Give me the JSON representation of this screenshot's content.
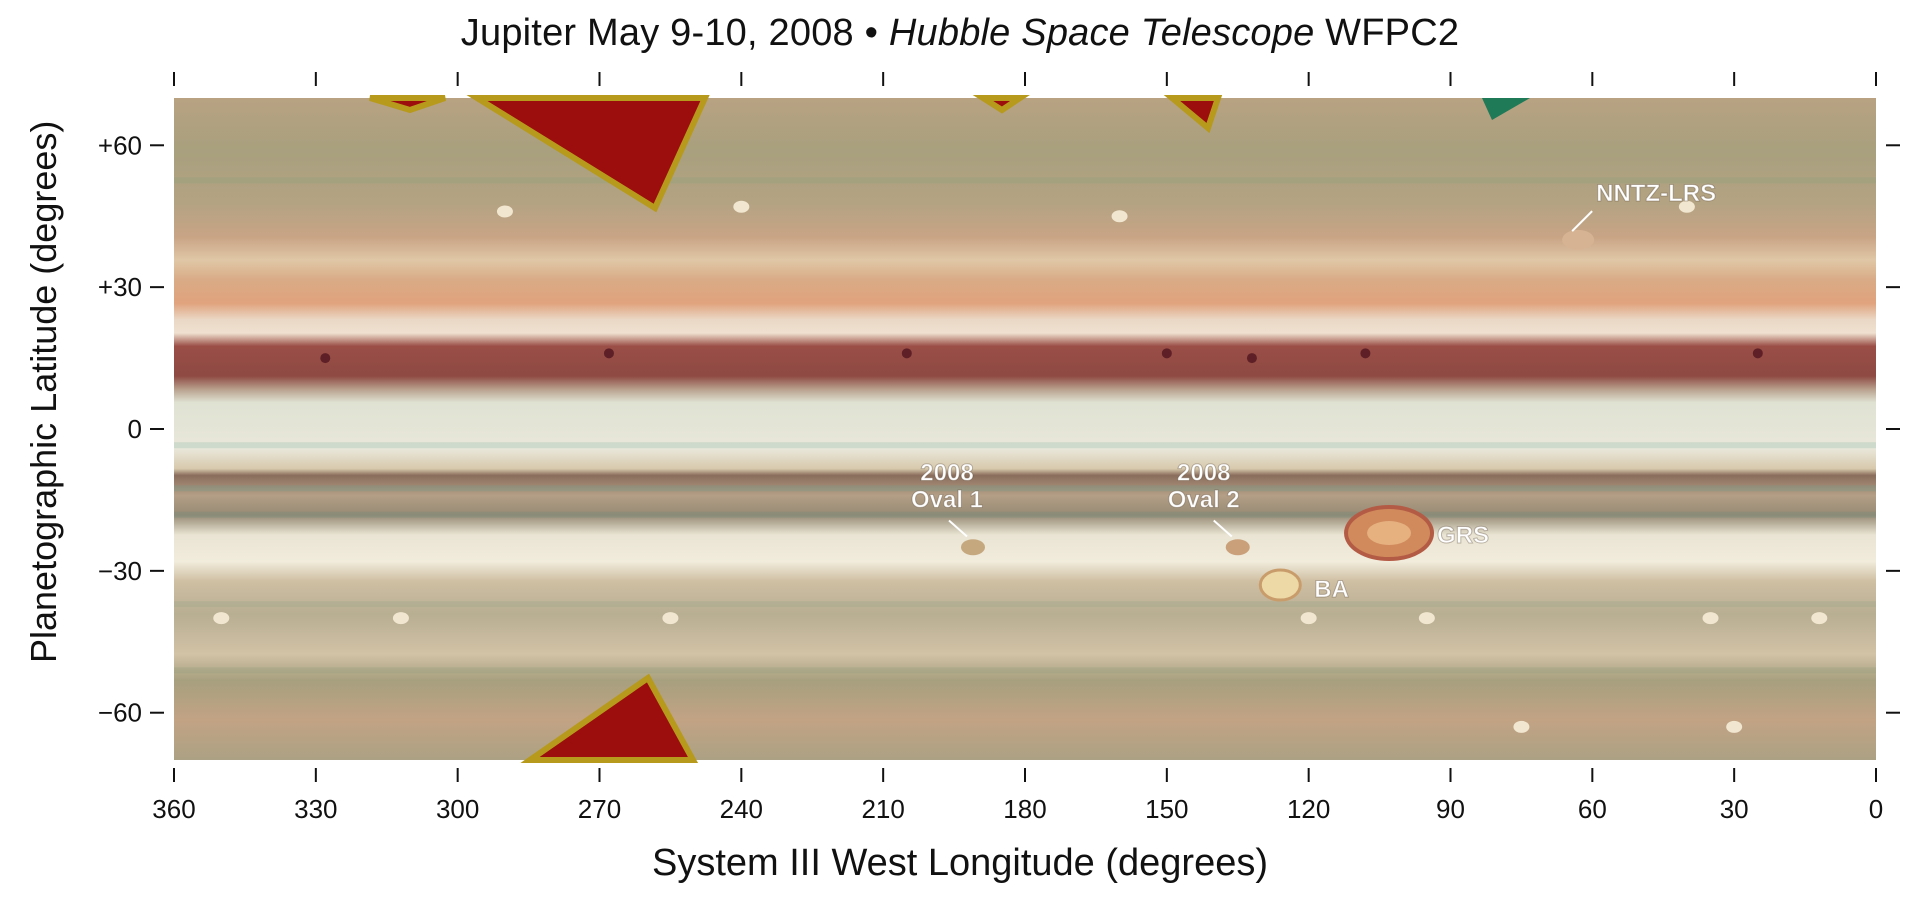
{
  "title": {
    "prefix": "Jupiter May 9-10, 2008 • ",
    "italic": "Hubble Space Telescope",
    "suffix": " WFPC2"
  },
  "axes": {
    "xlabel": "System III West Longitude (degrees)",
    "ylabel": "Planetographic Latitude (degrees)",
    "x_range": [
      360,
      0
    ],
    "y_range": [
      -70,
      70
    ],
    "x_ticks": [
      360,
      330,
      300,
      270,
      240,
      210,
      180,
      150,
      120,
      90,
      60,
      30,
      0
    ],
    "x_tick_labels": [
      "360",
      "330",
      "300",
      "270",
      "240",
      "210",
      "180",
      "150",
      "120",
      "90",
      "60",
      "30",
      "0"
    ],
    "y_ticks": [
      60,
      30,
      0,
      -30,
      -60
    ],
    "y_tick_labels": [
      "+60",
      "+30",
      "0",
      "−30",
      "−60"
    ]
  },
  "features": [
    {
      "lines": [
        "NNTZ-LRS"
      ],
      "lon": 63,
      "lat": 41
    },
    {
      "lines": [
        "2008",
        "Oval 1"
      ],
      "lon": 191,
      "lat": -24
    },
    {
      "lines": [
        "2008",
        "Oval 2"
      ],
      "lon": 135,
      "lat": -24
    },
    {
      "lines": [
        "GRS"
      ],
      "lon": 103,
      "lat": -22
    },
    {
      "lines": [
        "BA"
      ],
      "lon": 126,
      "lat": -33
    }
  ],
  "colors": {
    "background": "#ffffff",
    "label": "#ffffff",
    "axis": "#111111",
    "polar_mask": "#9c0e0e"
  }
}
